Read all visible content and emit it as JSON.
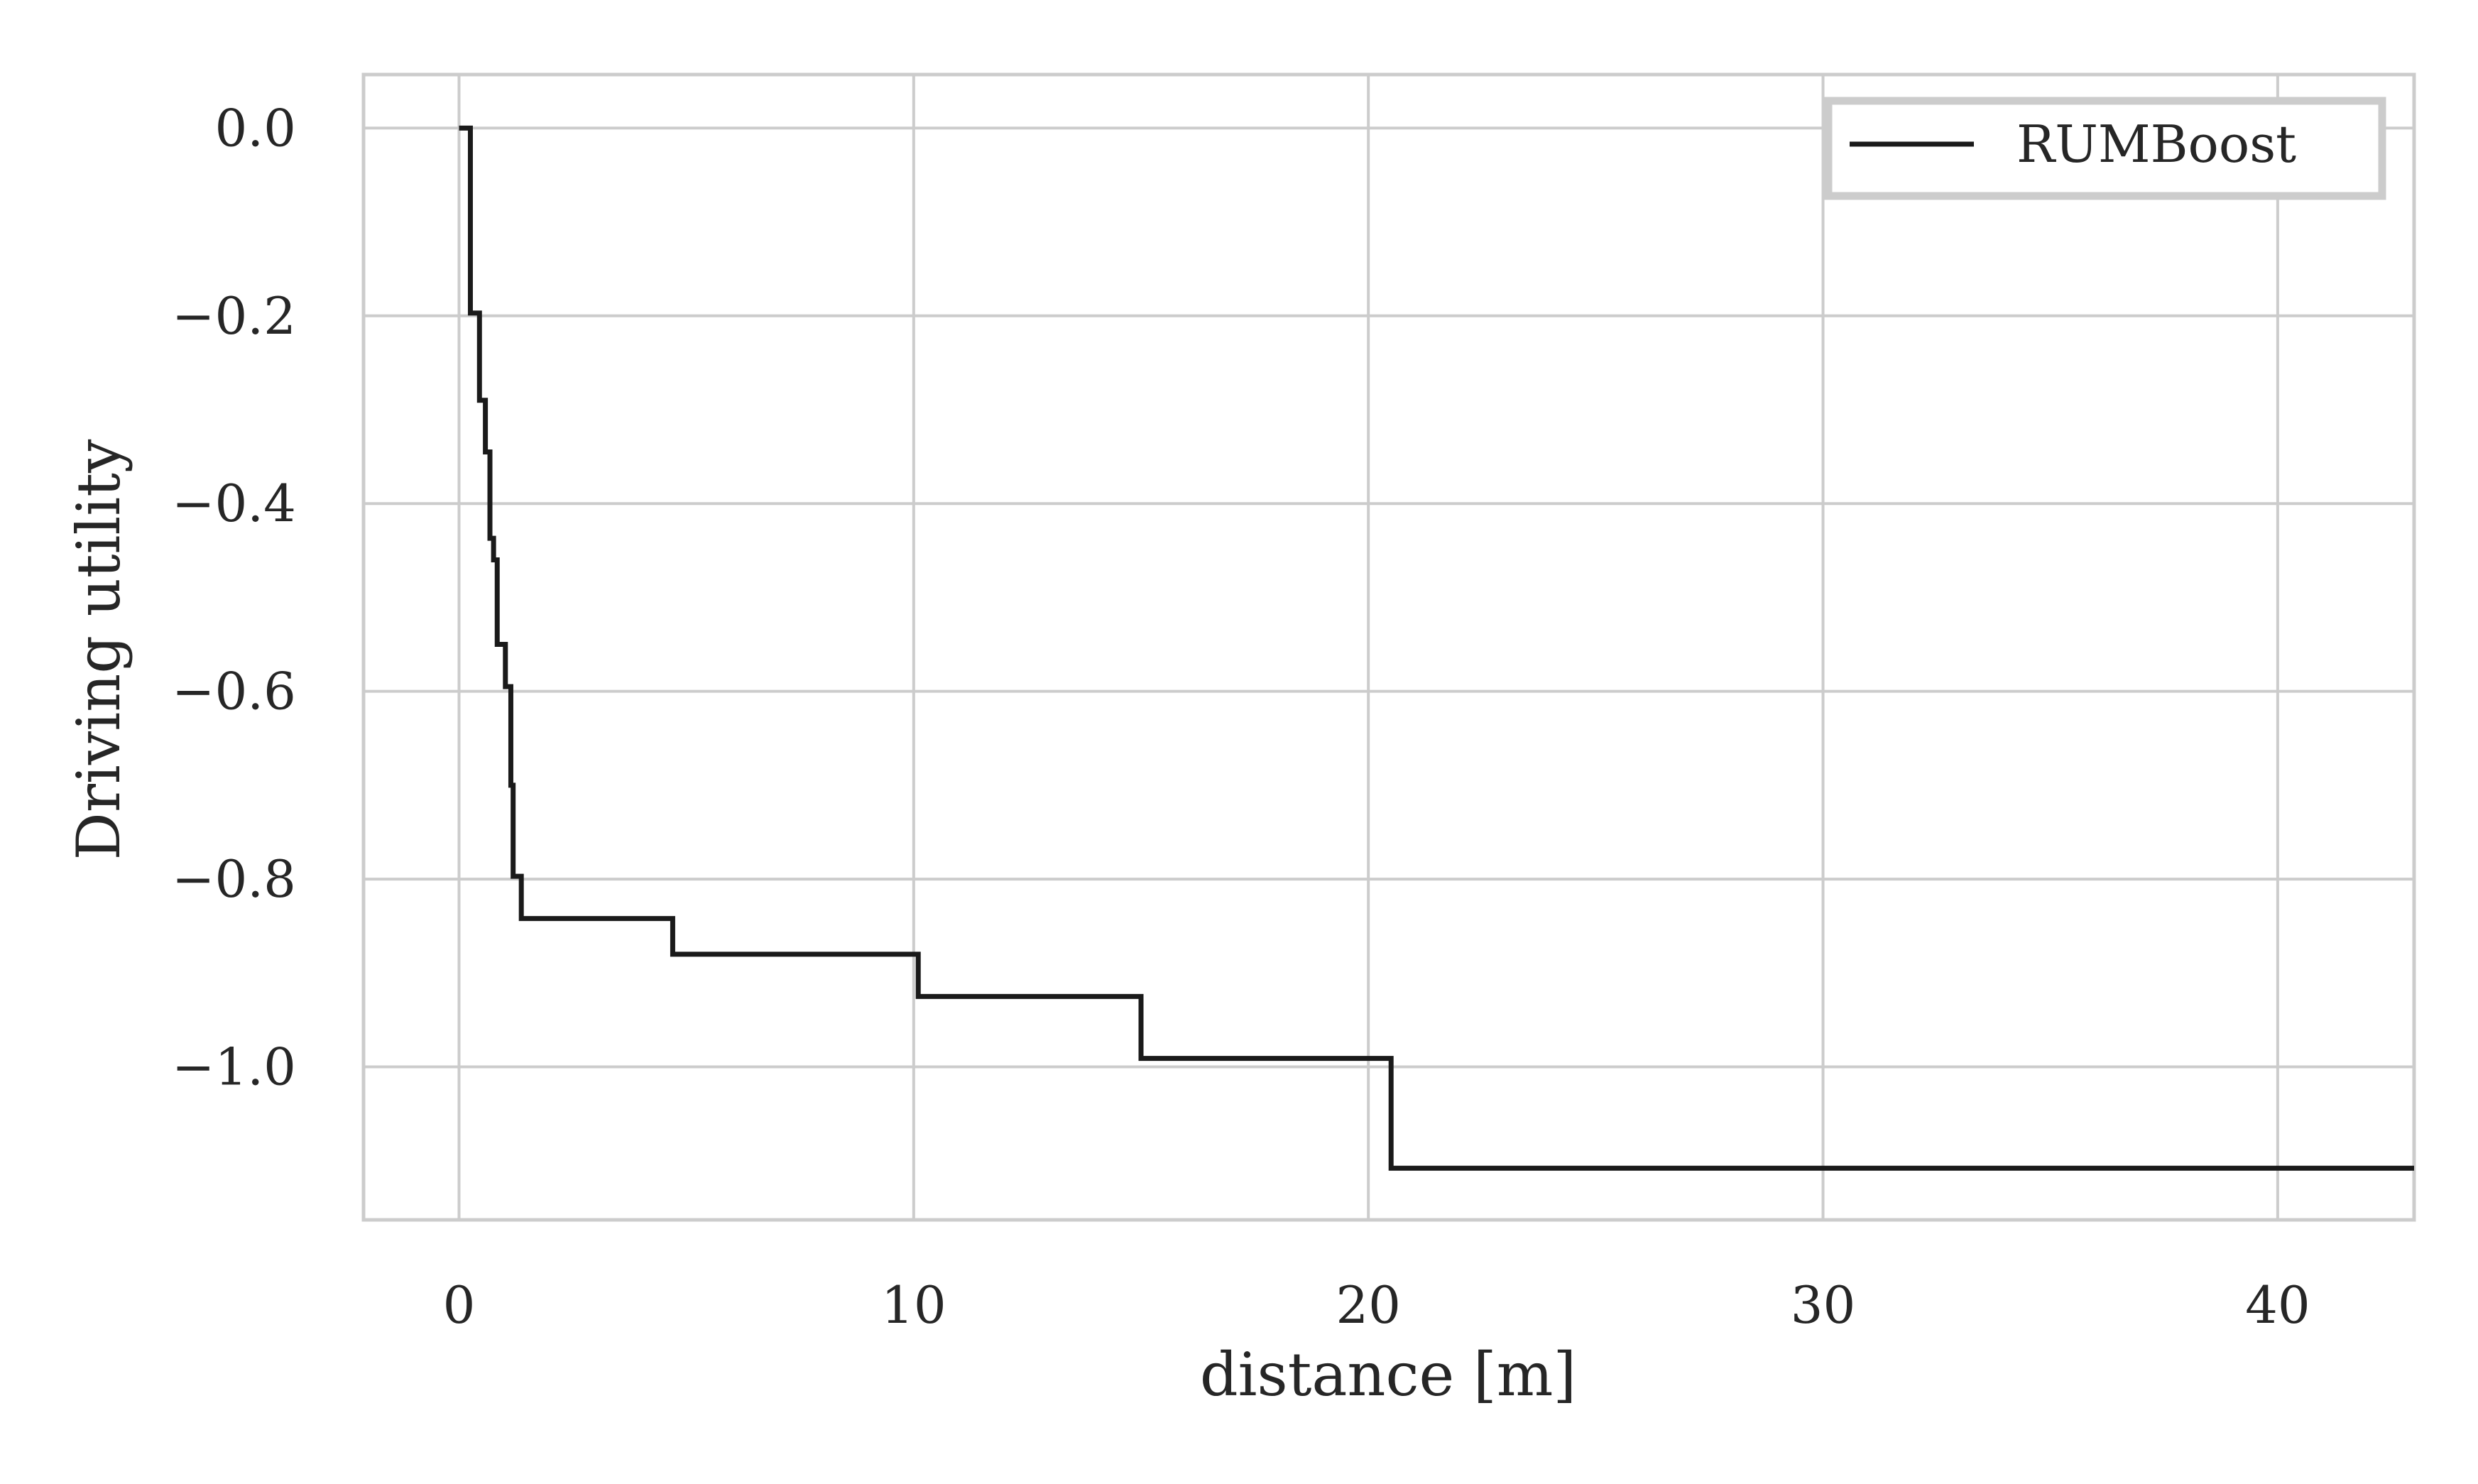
{
  "chart_data": {
    "type": "line",
    "xlabel": "distance [m]",
    "ylabel": "Driving utility",
    "xlim": [
      -2.1,
      43
    ],
    "ylim": [
      -1.163,
      0.057
    ],
    "x_ticks": [
      0,
      10,
      20,
      30,
      40
    ],
    "y_ticks": [
      0.0,
      -0.2,
      -0.4,
      -0.6,
      -0.8,
      -1.0
    ],
    "x_tick_labels": [
      "0",
      "10",
      "20",
      "30",
      "40"
    ],
    "y_tick_labels": [
      "0.0",
      "−0.2",
      "−0.4",
      "−0.6",
      "−0.8",
      "−1.0"
    ],
    "grid": true,
    "legend_position": "top-right",
    "series": [
      {
        "name": "RUMBoost",
        "color": "#1a1a1a",
        "step": true,
        "x": [
          0.0,
          0.25,
          0.45,
          0.58,
          0.68,
          0.76,
          0.8,
          0.84,
          0.92,
          1.02,
          1.1,
          1.14,
          1.19,
          1.37,
          4.7,
          10.1,
          15.0,
          20.5,
          43.0
        ],
        "y": [
          0.0,
          -0.197,
          -0.29,
          -0.345,
          -0.437,
          -0.46,
          -0.46,
          -0.55,
          -0.55,
          -0.595,
          -0.595,
          -0.7,
          -0.797,
          -0.842,
          -0.88,
          -0.925,
          -0.991,
          -1.108,
          -1.108
        ]
      }
    ]
  }
}
